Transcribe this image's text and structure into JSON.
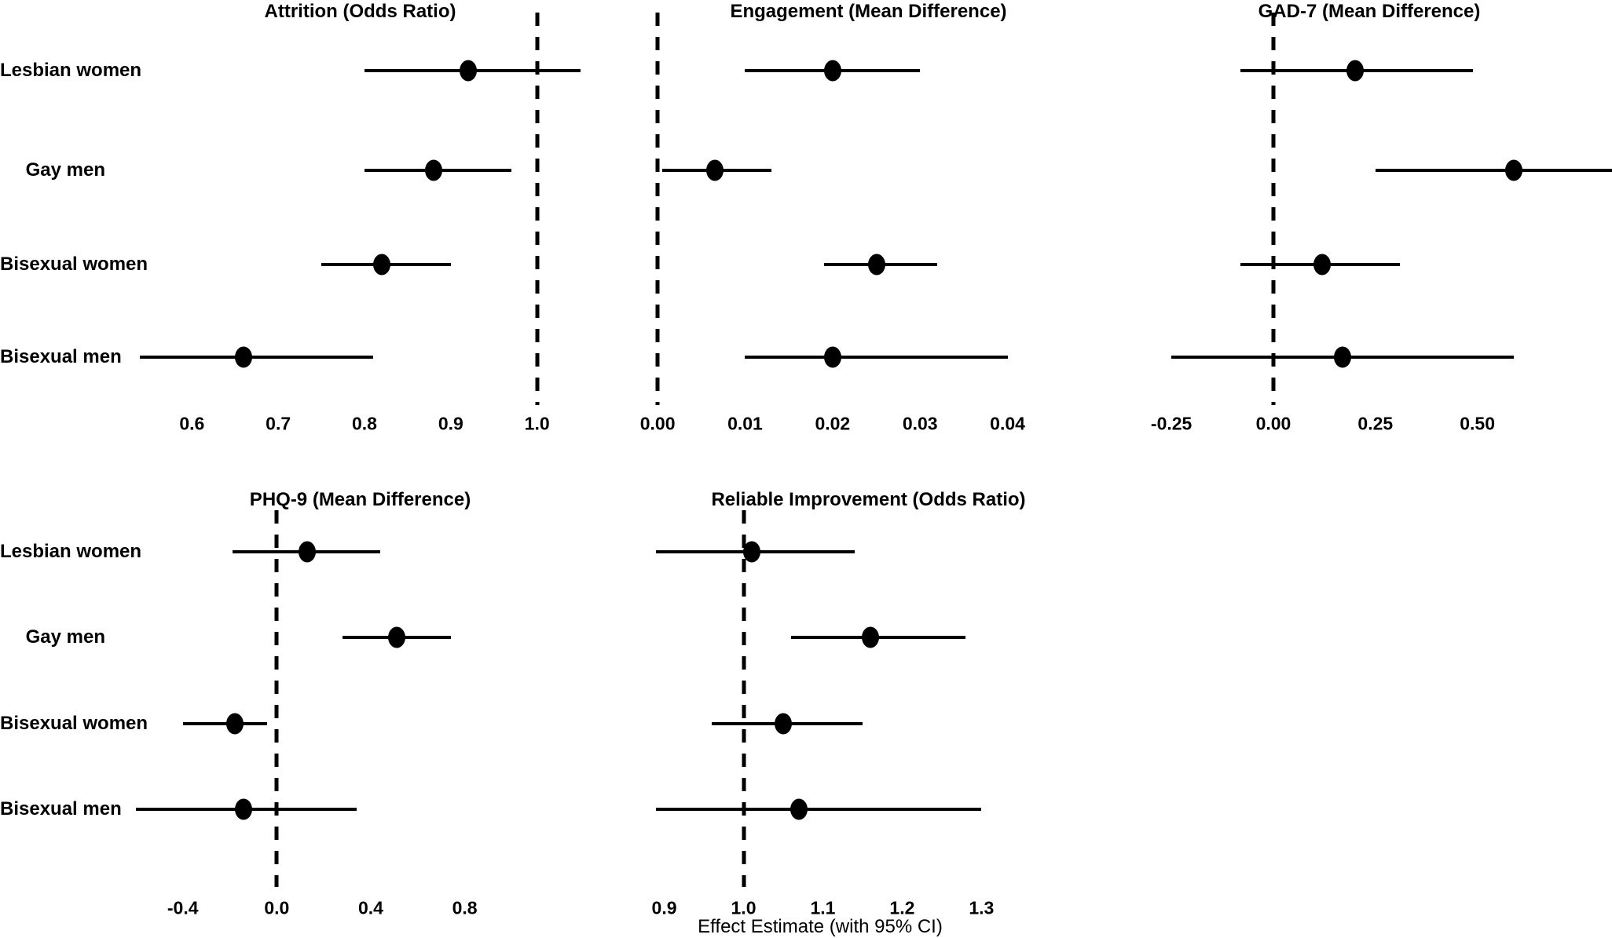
{
  "figure": {
    "background": "#ffffff",
    "foreground": "#000000"
  },
  "chart_data": {
    "type": "forest",
    "layout": "5 facet panels: top row 3, bottom row 2; shared group labels at left; dashed vertical reference line per panel; no gridlines; black points with 95% CI horizontal lines",
    "categories": [
      "Lesbian women",
      "Gay men",
      "Bisexual women",
      "Bisexual men"
    ],
    "xlabel": "Effect Estimate (with 95% CI)",
    "panels": [
      {
        "title": "Attrition (Odds Ratio)",
        "measure": "odds ratio",
        "ref_line": 1.0,
        "ticks": [
          0.6,
          0.7,
          0.8,
          0.9,
          1.0
        ],
        "tick_labels": [
          "0.6",
          "0.7",
          "0.8",
          "0.9",
          "1.0"
        ],
        "xlim": [
          0.505,
          1.085
        ],
        "grid": {
          "row": 0,
          "col": 0
        },
        "estimates": [
          {
            "group": "Lesbian women",
            "est": 0.92,
            "lo": 0.8,
            "hi": 1.05
          },
          {
            "group": "Gay men",
            "est": 0.88,
            "lo": 0.8,
            "hi": 0.97
          },
          {
            "group": "Bisexual women",
            "est": 0.82,
            "lo": 0.75,
            "hi": 0.9
          },
          {
            "group": "Bisexual men",
            "est": 0.66,
            "lo": 0.54,
            "hi": 0.81
          }
        ]
      },
      {
        "title": "Engagement (Mean Difference)",
        "measure": "mean difference",
        "ref_line": 0.0,
        "ticks": [
          0.0,
          0.01,
          0.02,
          0.03,
          0.04
        ],
        "tick_labels": [
          "0.00",
          "0.01",
          "0.02",
          "0.03",
          "0.04"
        ],
        "xlim": [
          -0.0045,
          0.0527
        ],
        "grid": {
          "row": 0,
          "col": 1
        },
        "estimates": [
          {
            "group": "Lesbian women",
            "est": 0.02,
            "lo": 0.01,
            "hi": 0.03
          },
          {
            "group": "Gay men",
            "est": 0.0065,
            "lo": 0.0005,
            "hi": 0.013
          },
          {
            "group": "Bisexual women",
            "est": 0.025,
            "lo": 0.019,
            "hi": 0.032
          },
          {
            "group": "Bisexual men",
            "est": 0.02,
            "lo": 0.01,
            "hi": 0.04
          }
        ]
      },
      {
        "title": "GAD-7 (Mean Difference)",
        "measure": "mean difference",
        "ref_line": 0.0,
        "ticks": [
          -0.25,
          0.0,
          0.25,
          0.5
        ],
        "tick_labels": [
          "-0.25",
          "0.00",
          "0.25",
          "0.50"
        ],
        "xlim": [
          -0.36,
          0.83
        ],
        "grid": {
          "row": 0,
          "col": 2
        },
        "estimates": [
          {
            "group": "Lesbian women",
            "est": 0.2,
            "lo": -0.08,
            "hi": 0.49
          },
          {
            "group": "Gay men",
            "est": 0.59,
            "lo": 0.25,
            "hi": 0.93
          },
          {
            "group": "Bisexual women",
            "est": 0.12,
            "lo": -0.08,
            "hi": 0.31
          },
          {
            "group": "Bisexual men",
            "est": 0.17,
            "lo": -0.25,
            "hi": 0.59
          }
        ]
      },
      {
        "title": "PHQ-9 (Mean Difference)",
        "measure": "mean difference",
        "ref_line": 0.0,
        "ticks": [
          -0.4,
          0.0,
          0.4,
          0.8
        ],
        "tick_labels": [
          "-0.4",
          "0.0",
          "0.4",
          "0.8"
        ],
        "xlim": [
          -0.71,
          1.42
        ],
        "grid": {
          "row": 1,
          "col": 0
        },
        "estimates": [
          {
            "group": "Lesbian women",
            "est": 0.13,
            "lo": -0.19,
            "hi": 0.44
          },
          {
            "group": "Gay men",
            "est": 0.51,
            "lo": 0.28,
            "hi": 0.74
          },
          {
            "group": "Bisexual women",
            "est": -0.18,
            "lo": -0.4,
            "hi": -0.04
          },
          {
            "group": "Bisexual men",
            "est": -0.14,
            "lo": -0.6,
            "hi": 0.34
          }
        ]
      },
      {
        "title": "Reliable Improvement (Odds Ratio)",
        "measure": "odds ratio",
        "ref_line": 1.0,
        "ticks": [
          0.9,
          1.0,
          1.1,
          1.2,
          1.3
        ],
        "tick_labels": [
          "0.9",
          "1.0",
          "1.1",
          "1.2",
          "1.3"
        ],
        "xlim": [
          0.842,
          1.473
        ],
        "grid": {
          "row": 1,
          "col": 1
        },
        "estimates": [
          {
            "group": "Lesbian women",
            "est": 1.01,
            "lo": 0.89,
            "hi": 1.14
          },
          {
            "group": "Gay men",
            "est": 1.16,
            "lo": 1.06,
            "hi": 1.28
          },
          {
            "group": "Bisexual women",
            "est": 1.05,
            "lo": 0.96,
            "hi": 1.15
          },
          {
            "group": "Bisexual men",
            "est": 1.07,
            "lo": 0.89,
            "hi": 1.3
          }
        ]
      }
    ]
  }
}
